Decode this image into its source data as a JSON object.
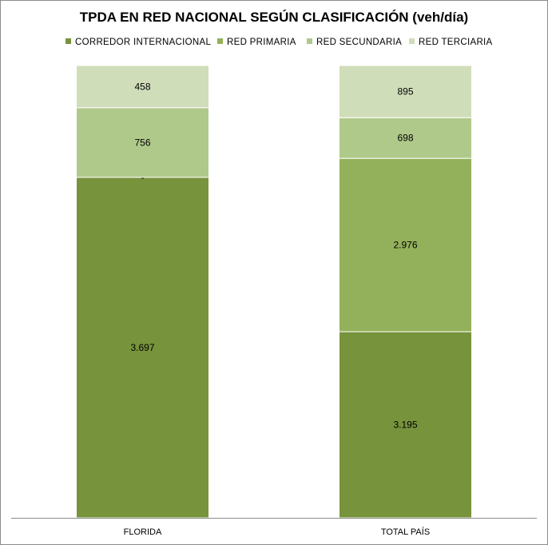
{
  "chart_data": {
    "type": "bar",
    "stacked": true,
    "title": "TPDA EN RED NACIONAL SEGÚN CLASIFICACIÓN (veh/día)",
    "xlabel": "",
    "ylabel": "",
    "categories": [
      "FLORIDA",
      "TOTAL PAÍS"
    ],
    "series": [
      {
        "name": "CORREDOR INTERNACIONAL",
        "color": "#77933c",
        "values": [
          3697,
          3195
        ],
        "labels": [
          "3.697",
          "3.195"
        ]
      },
      {
        "name": "RED PRIMARIA",
        "color": "#93b15a",
        "values": [
          0,
          2976
        ],
        "labels": [
          "-",
          "2.976"
        ]
      },
      {
        "name": "RED SECUNDARIA",
        "color": "#afc98a",
        "values": [
          756,
          698
        ],
        "labels": [
          "756",
          "698"
        ]
      },
      {
        "name": "RED TERCIARIA",
        "color": "#d0ddb9",
        "values": [
          458,
          895
        ],
        "labels": [
          "458",
          "895"
        ]
      }
    ],
    "legend_position": "top",
    "grid": false
  }
}
